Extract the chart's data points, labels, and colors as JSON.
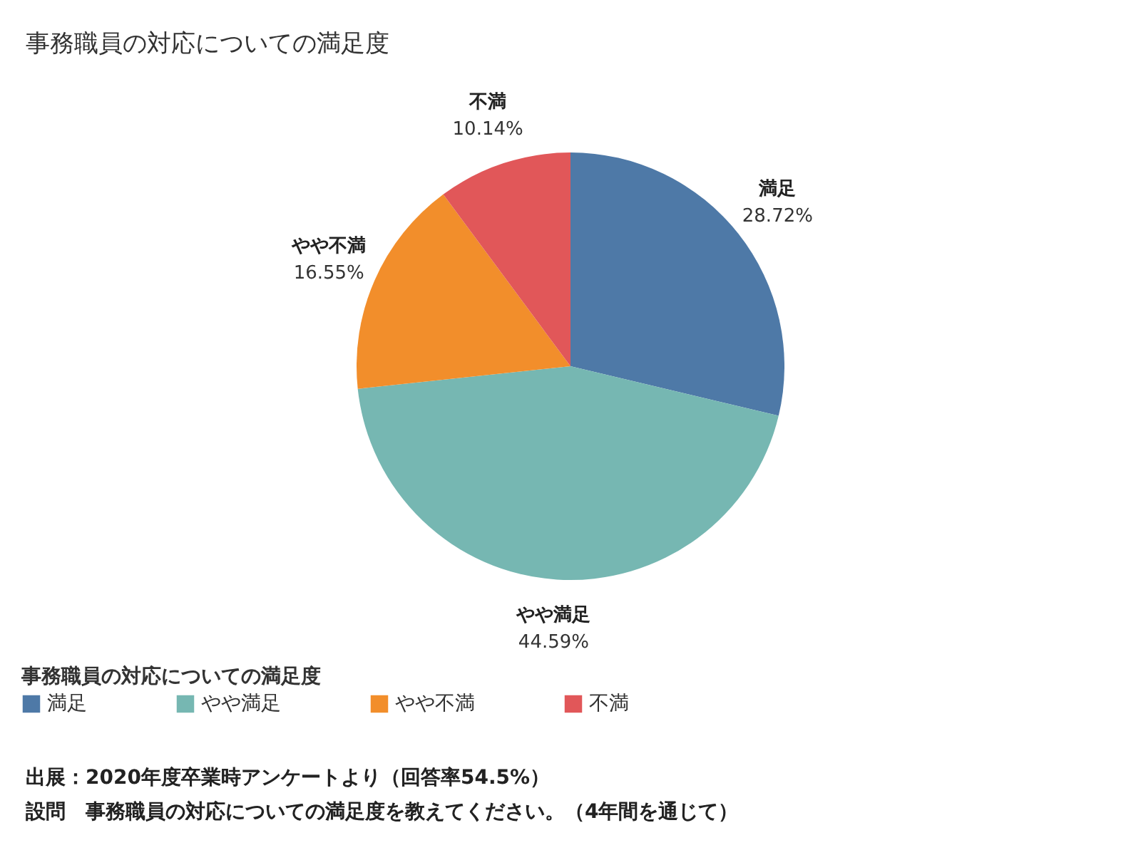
{
  "chart_data": {
    "type": "pie",
    "title": "事務職員の対応についての満足度",
    "categories": [
      "満足",
      "やや満足",
      "やや不満",
      "不満"
    ],
    "values": [
      28.72,
      44.59,
      16.55,
      10.14
    ],
    "colors": [
      "#4e79a7",
      "#76b7b2",
      "#f28e2b",
      "#e15759"
    ],
    "value_labels": [
      "28.72%",
      "44.59%",
      "16.55%",
      "10.14%"
    ],
    "legend": "bottom",
    "legend_title": "事務職員の対応についての満足度",
    "annotations": [
      "出展：2020年度卒業時アンケートより（回答率54.5%）",
      "設問　事務職員の対応についての満足度を教えてください。（4年間を通じて）"
    ]
  }
}
